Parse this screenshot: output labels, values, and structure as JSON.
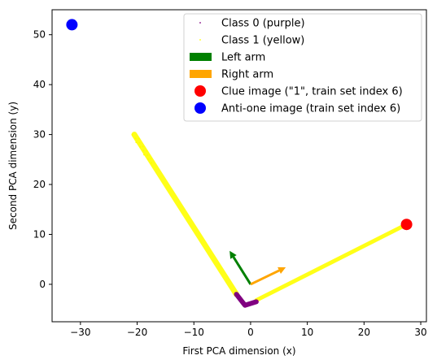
{
  "chart_data": {
    "type": "scatter",
    "xlabel": "First PCA dimension (x)",
    "ylabel": "Second PCA dimension (y)",
    "xlim": [
      -35,
      31
    ],
    "ylim": [
      -7.5,
      55
    ],
    "xticks": [
      -30,
      -20,
      -10,
      0,
      10,
      20,
      30
    ],
    "yticks": [
      0,
      10,
      20,
      30,
      40,
      50
    ],
    "grid": false,
    "legend_position": "top-right",
    "series": [
      {
        "name": "Class 0 (purple)",
        "kind": "cluster",
        "color": "#800080",
        "path": [
          [
            -2.5,
            -2
          ],
          [
            -1,
            -4.2
          ],
          [
            1,
            -3.5
          ]
        ]
      },
      {
        "name": "Class 1 (yellow)",
        "kind": "band",
        "color": "#ffff00",
        "bands": [
          {
            "from": [
              -20.5,
              30
            ],
            "to": [
              -2.5,
              -2
            ]
          },
          {
            "from": [
              1,
              -3.2
            ],
            "to": [
              27.5,
              12
            ]
          }
        ]
      },
      {
        "name": "Left arm",
        "kind": "arrow",
        "color": "#008000",
        "from": [
          0,
          0
        ],
        "to": [
          -3.7,
          6.7
        ]
      },
      {
        "name": "Right arm",
        "kind": "arrow",
        "color": "#ffa500",
        "from": [
          0,
          0
        ],
        "to": [
          6.2,
          3.4
        ]
      },
      {
        "name": "Clue image (\"1\", train set index 6)",
        "kind": "point",
        "color": "#ff0000",
        "x": 27.5,
        "y": 12
      },
      {
        "name": "Anti-one image (train set index 6)",
        "kind": "point",
        "color": "#0000ff",
        "x": -31.5,
        "y": 52
      }
    ]
  }
}
